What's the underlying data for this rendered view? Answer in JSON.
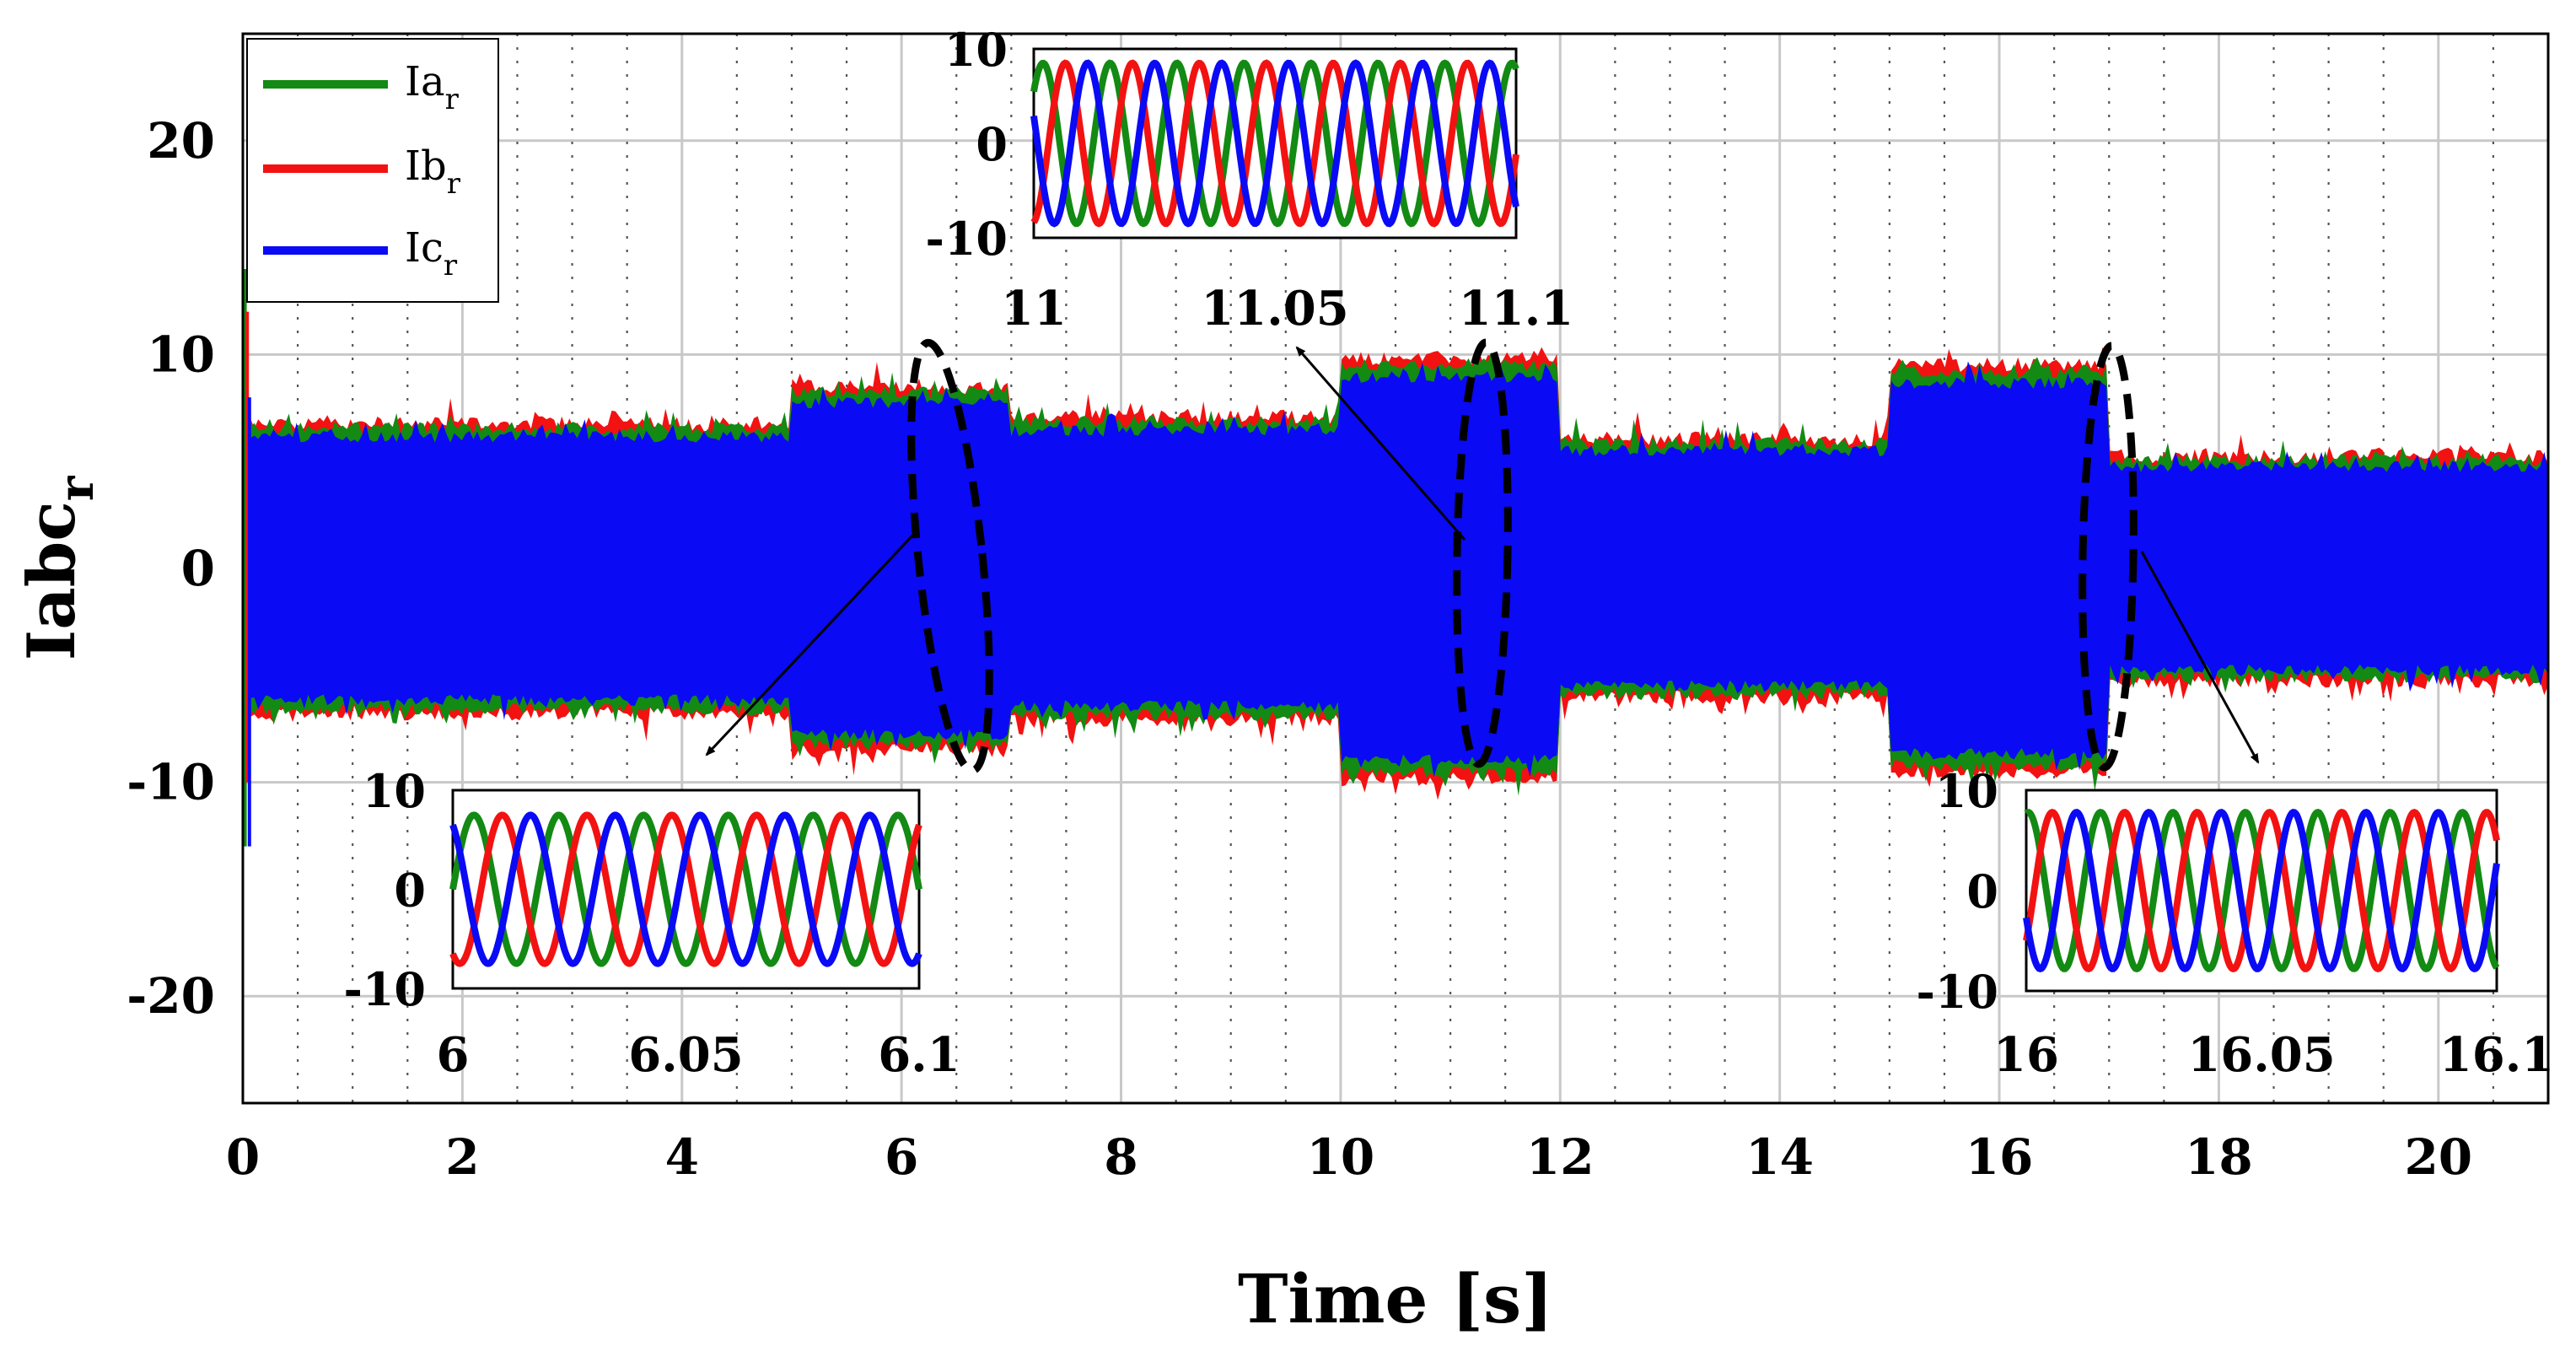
{
  "chart_data": {
    "type": "line",
    "title": "",
    "xlabel": "Time [s]",
    "ylabel_main": "Iabc",
    "ylabel_sub": "r",
    "xlim": [
      0,
      21
    ],
    "ylim": [
      -25,
      25
    ],
    "xticks": [
      0,
      2,
      4,
      6,
      8,
      10,
      12,
      14,
      16,
      18,
      20
    ],
    "yticks": [
      -20,
      -10,
      0,
      10,
      20
    ],
    "grid": true,
    "legend_position": "top-left",
    "colors": {
      "a": "#138a13",
      "b": "#f21212",
      "c": "#0a0af5"
    },
    "series": [
      {
        "name": "Ia",
        "sub": "r",
        "color": "#138a13"
      },
      {
        "name": "Ib",
        "sub": "r",
        "color": "#f21212"
      },
      {
        "name": "Ic",
        "sub": "r",
        "color": "#0a0af5"
      }
    ],
    "envelope_segments": [
      {
        "t_start": 0.0,
        "t_end": 5.0,
        "peak": 6.5
      },
      {
        "t_start": 5.0,
        "t_end": 7.0,
        "peak": 8.2
      },
      {
        "t_start": 7.0,
        "t_end": 10.0,
        "peak": 6.8
      },
      {
        "t_start": 10.0,
        "t_end": 12.0,
        "peak": 9.5
      },
      {
        "t_start": 12.0,
        "t_end": 15.0,
        "peak": 5.8
      },
      {
        "t_start": 15.0,
        "t_end": 17.0,
        "peak": 9.2
      },
      {
        "t_start": 17.0,
        "t_end": 21.0,
        "peak": 5.0
      }
    ],
    "insets": [
      {
        "id": "inset-1",
        "xlim": [
          6,
          6.1
        ],
        "xticks": [
          "6",
          "6.05",
          "6.1"
        ],
        "ylim": [
          -10,
          10
        ],
        "yticks": [
          "10",
          "0",
          "-10"
        ],
        "amplitude": 7.5,
        "frequency_cycles": 5.5
      },
      {
        "id": "inset-2",
        "xlim": [
          11,
          11.1
        ],
        "xticks": [
          "11",
          "11.05",
          "11.1"
        ],
        "ylim": [
          -10,
          10
        ],
        "yticks": [
          "10",
          "0",
          "-10"
        ],
        "amplitude": 8.5,
        "frequency_cycles": 7.2
      },
      {
        "id": "inset-3",
        "xlim": [
          16,
          16.1
        ],
        "xticks": [
          "16",
          "16.05",
          "16.1"
        ],
        "ylim": [
          -10,
          10
        ],
        "yticks": [
          "10",
          "0",
          "-10"
        ],
        "amplitude": 7.8,
        "frequency_cycles": 6.5
      }
    ]
  }
}
